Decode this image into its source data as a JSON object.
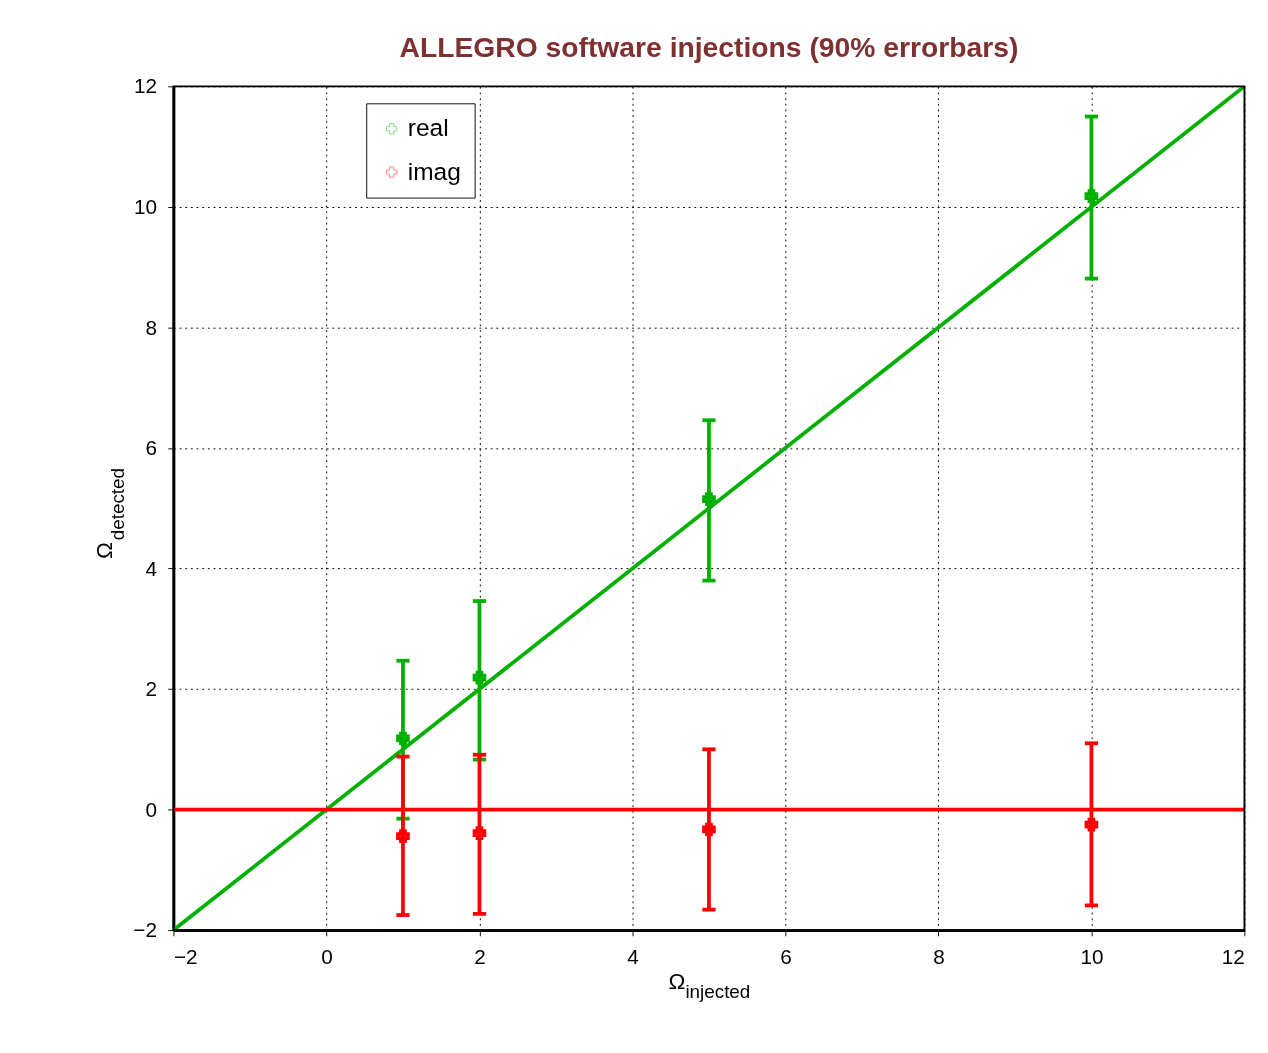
{
  "chart_data": {
    "type": "scatter",
    "title": "ALLEGRO software injections (90% errorbars)",
    "xlabel": "Ω$_{injected}$",
    "ylabel": "Ω$_{detected}$",
    "xlim": [
      -2,
      12
    ],
    "ylim": [
      -2,
      12
    ],
    "xticks": [
      -2,
      0,
      2,
      4,
      6,
      8,
      10,
      12
    ],
    "yticks": [
      -2,
      0,
      2,
      4,
      6,
      8,
      10,
      12
    ],
    "grid": true,
    "legend": "top left",
    "series": [
      {
        "type": "line",
        "color": "#00b000",
        "x": [
          -2,
          12
        ],
        "values": [
          -2,
          12
        ]
      },
      {
        "type": "line",
        "color": "#ff0000",
        "x": [
          -2,
          12
        ],
        "values": [
          0,
          0
        ]
      },
      {
        "name": "real",
        "marker": "cross",
        "color": "#00b000",
        "x": [
          1,
          2,
          5,
          10
        ],
        "values": [
          1.18,
          2.19,
          5.15,
          10.18
        ],
        "errors": [
          [
            -0.15,
            2.47
          ],
          [
            0.83,
            3.46
          ],
          [
            3.8,
            6.46
          ],
          [
            8.81,
            11.5
          ]
        ]
      },
      {
        "name": "imag",
        "marker": "cross",
        "color": "#ff0000",
        "x": [
          1,
          2,
          5,
          10
        ],
        "values": [
          -0.44,
          -0.39,
          -0.33,
          -0.25
        ],
        "errors": [
          [
            -1.75,
            0.88
          ],
          [
            -1.73,
            0.91
          ],
          [
            -1.66,
            1.0
          ],
          [
            -1.59,
            1.1
          ]
        ]
      }
    ]
  }
}
